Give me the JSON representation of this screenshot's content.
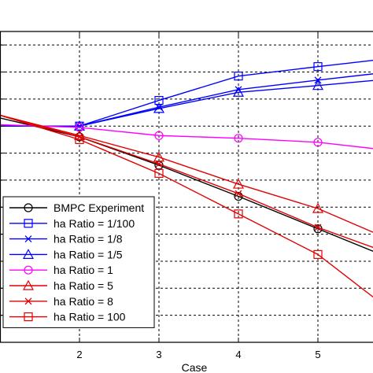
{
  "chart_data": {
    "type": "line",
    "xlabel": "Case",
    "ylabel": "",
    "xlim": [
      1,
      5.75
    ],
    "ylim": [
      0,
      11.5
    ],
    "x_ticks": [
      2,
      3,
      4,
      5
    ],
    "y_gridlines": [
      1,
      2,
      3,
      4,
      5,
      6,
      7,
      8,
      9,
      10,
      11
    ],
    "grid": true,
    "grid_style": "dashed",
    "legend_position": "bottom-left",
    "series": [
      {
        "name": "BMPC Experiment",
        "color": "#000000",
        "marker": "circle",
        "x": [
          1,
          2,
          3,
          4,
          5,
          5.75
        ],
        "y": [
          8.3,
          7.6,
          6.55,
          5.4,
          4.2,
          3.3
        ]
      },
      {
        "name": "ha Ratio = 1/100",
        "color": "#0000ff",
        "marker": "square",
        "x": [
          1,
          2,
          3,
          4,
          5,
          5.75
        ],
        "y": [
          8.0,
          8.0,
          8.95,
          9.85,
          10.2,
          10.45
        ]
      },
      {
        "name": "ha Ratio = 1/8",
        "color": "#0000ff",
        "marker": "x",
        "x": [
          1,
          2,
          3,
          4,
          5,
          5.75
        ],
        "y": [
          8.0,
          8.0,
          8.7,
          9.35,
          9.7,
          9.95
        ]
      },
      {
        "name": "ha Ratio = 1/5",
        "color": "#0000ff",
        "marker": "triangle",
        "x": [
          1,
          2,
          3,
          4,
          5,
          5.75
        ],
        "y": [
          8.0,
          8.0,
          8.65,
          9.25,
          9.5,
          9.7
        ]
      },
      {
        "name": "ha Ratio = 1",
        "color": "#ff00ff",
        "marker": "circle",
        "x": [
          1,
          2,
          3,
          4,
          5,
          5.75
        ],
        "y": [
          8.05,
          7.95,
          7.65,
          7.55,
          7.4,
          7.15
        ]
      },
      {
        "name": "ha Ratio = 5",
        "color": "#e00000",
        "marker": "triangle",
        "x": [
          1,
          2,
          3,
          4,
          5,
          5.75
        ],
        "y": [
          8.4,
          7.65,
          6.85,
          5.85,
          4.95,
          4.0
        ]
      },
      {
        "name": "ha Ratio = 8",
        "color": "#e00000",
        "marker": "x",
        "x": [
          1,
          2,
          3,
          4,
          5,
          5.75
        ],
        "y": [
          8.4,
          7.6,
          6.6,
          5.5,
          4.25,
          3.45
        ]
      },
      {
        "name": "ha Ratio = 100",
        "color": "#e00000",
        "marker": "square",
        "x": [
          1,
          2,
          3,
          4,
          5,
          5.75
        ],
        "y": [
          8.4,
          7.5,
          6.25,
          4.75,
          3.25,
          1.55
        ]
      }
    ]
  }
}
